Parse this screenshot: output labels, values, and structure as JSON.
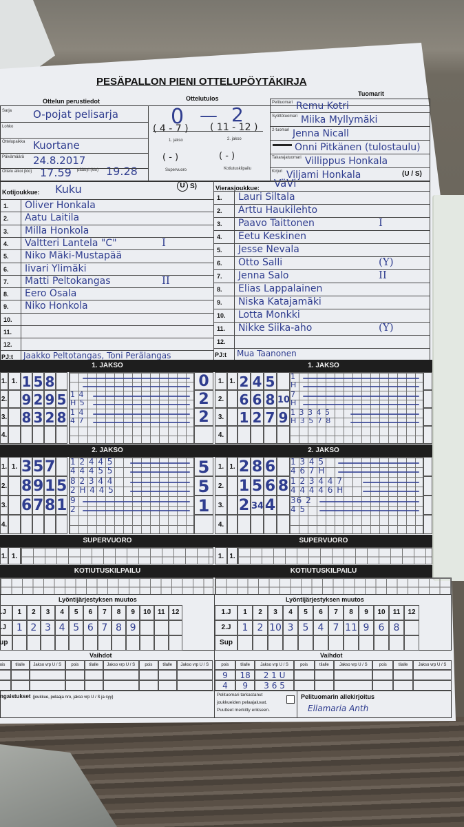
{
  "title": "PESÄPALLON PIENI OTTELUPÖYTÄKIRJA",
  "basic": {
    "heading": "Ottelun perustiedot",
    "fields": [
      {
        "label": "Sarja",
        "value": "O-pojat pelisarja"
      },
      {
        "label": "Lohko",
        "value": ""
      },
      {
        "label": "Ottelupaikka",
        "value": "Kuortane"
      },
      {
        "label": "Päivämäärä",
        "value": "24.8.2017"
      }
    ],
    "start_label": "Ottelu alkoi (klo)",
    "start": "17.59",
    "end_label": "päättyi (klo)",
    "end": "19.28"
  },
  "result": {
    "heading": "Ottelutulos",
    "home": "0",
    "dash": "—",
    "away": "2",
    "period1": "( 4 - 7 )",
    "period2": "( 11 - 12 )",
    "period1_label": "1. jakso",
    "period2_label": "2. jakso",
    "super": "(  -  )",
    "home_run": "(  -  )",
    "super_label": "Supervuoro",
    "home_run_label": "Kotiutuskilpailu"
  },
  "referees": {
    "heading": "Tuomarit",
    "rows": [
      {
        "label": "Pelituomari",
        "value": "Remu Kotri"
      },
      {
        "label": "Syöttötuomari",
        "value": "Miika Myllymäki"
      },
      {
        "label": "2-tuomari",
        "value": "Jenna Nicall"
      },
      {
        "label": "",
        "value": "Onni Pitkänen (tulostaulu)"
      },
      {
        "label": "Takarajatuomari",
        "value": "Villippus Honkala"
      },
      {
        "label": "Kirjuri",
        "value": "Viljami Honkala"
      }
    ],
    "us": "(U / S)"
  },
  "home": {
    "label": "Kotijoukkue:",
    "name": "Kuku",
    "us": "U",
    "us_rest": "S)",
    "pj_label": "PJ:t",
    "pj": "Jaakko Peltotangas, Toni Perälangas",
    "players": [
      {
        "no": "1.",
        "name": "Oliver Honkala",
        "mark": ""
      },
      {
        "no": "2.",
        "name": "Aatu Laitila",
        "mark": ""
      },
      {
        "no": "3.",
        "name": "Milla Honkola",
        "mark": ""
      },
      {
        "no": "4.",
        "name": "Valtteri Lantela \"C\"",
        "mark": "I"
      },
      {
        "no": "5.",
        "name": "Niko Mäki-Mustapää",
        "mark": ""
      },
      {
        "no": "6.",
        "name": "Iivari Ylimäki",
        "mark": ""
      },
      {
        "no": "7.",
        "name": "Matti Peltokangas",
        "mark": "II"
      },
      {
        "no": "8.",
        "name": "Eero Osala",
        "mark": ""
      },
      {
        "no": "9.",
        "name": "Niko Honkola",
        "mark": ""
      },
      {
        "no": "10.",
        "name": "",
        "mark": ""
      },
      {
        "no": "11.",
        "name": "",
        "mark": ""
      },
      {
        "no": "12.",
        "name": "",
        "mark": ""
      }
    ]
  },
  "away": {
    "label": "Vierasjoukkue:",
    "name": "VäVi",
    "us": "(U / S)",
    "pj_label": "PJ:t",
    "pj": "Mua Taanonen",
    "players": [
      {
        "no": "1.",
        "name": "Lauri Siltala",
        "mark": ""
      },
      {
        "no": "2.",
        "name": "Arttu Haukilehto",
        "mark": ""
      },
      {
        "no": "3.",
        "name": "Paavo Taittonen",
        "mark": "I"
      },
      {
        "no": "4.",
        "name": "Eetu Keskinen",
        "mark": ""
      },
      {
        "no": "5.",
        "name": "Jesse Nevala",
        "mark": ""
      },
      {
        "no": "6.",
        "name": "Otto Salli",
        "mark": "(Y)"
      },
      {
        "no": "7.",
        "name": "Jenna Salo",
        "mark": "II"
      },
      {
        "no": "8.",
        "name": "Elias Lappalainen",
        "mark": ""
      },
      {
        "no": "9.",
        "name": "Niska Katajamäki",
        "mark": ""
      },
      {
        "no": "10.",
        "name": "Lotta Monkki",
        "mark": ""
      },
      {
        "no": "11.",
        "name": "Nikke Siika-aho",
        "mark": "(Y)"
      },
      {
        "no": "12.",
        "name": "",
        "mark": ""
      }
    ]
  },
  "sections": {
    "p1": "1. JAKSO",
    "p2": "2. JAKSO",
    "super": "SUPERVUORO",
    "home_run": "KOTIUTUSKILPAILU",
    "lineup": "Lyöntijärjestyksen muutos",
    "subs": "Vaihdot"
  },
  "innings": {
    "home_p1": [
      {
        "no": "1.",
        "sub": "1.",
        "hitters": [
          "1",
          "5",
          "8",
          ""
        ],
        "notes": [
          "",
          ""
        ],
        "score": "0"
      },
      {
        "no": "2.",
        "sub": "",
        "hitters": [
          "9",
          "2",
          "9",
          "5"
        ],
        "notes": [
          "1 4",
          "H 5"
        ],
        "score": "2"
      },
      {
        "no": "3.",
        "sub": "",
        "hitters": [
          "8",
          "3",
          "2",
          "8"
        ],
        "notes": [
          "1 4",
          "4 7"
        ],
        "score": "2"
      },
      {
        "no": "4.",
        "sub": "",
        "hitters": [
          "",
          "",
          "",
          ""
        ],
        "notes": [
          "",
          ""
        ],
        "score": ""
      }
    ],
    "away_p1": [
      {
        "no": "1.",
        "sub": "1.",
        "hitters": [
          "2",
          "4",
          "5",
          ""
        ],
        "notes": [
          "1",
          "H"
        ],
        "score": ""
      },
      {
        "no": "2.",
        "sub": "",
        "hitters": [
          "6",
          "6",
          "8",
          "10"
        ],
        "notes": [
          "7",
          "H"
        ],
        "score": ""
      },
      {
        "no": "3.",
        "sub": "",
        "hitters": [
          "1",
          "2",
          "7",
          "9"
        ],
        "notes": [
          "1 3 3 4 5",
          "H 3 5 7 8"
        ],
        "score": ""
      },
      {
        "no": "4.",
        "sub": "",
        "hitters": [
          "",
          "",
          "",
          ""
        ],
        "notes": [
          "",
          ""
        ],
        "score": ""
      }
    ],
    "home_p2": [
      {
        "no": "1.",
        "sub": "1.",
        "hitters": [
          "3",
          "5",
          "7",
          ""
        ],
        "notes": [
          "1 2 4 4 5",
          "4 4 4 5 5"
        ],
        "score": "5"
      },
      {
        "no": "2.",
        "sub": "",
        "hitters": [
          "8",
          "9",
          "1",
          "5"
        ],
        "notes": [
          "8 2 3 4 4",
          "2 H 4 4 5"
        ],
        "score": "5"
      },
      {
        "no": "3.",
        "sub": "",
        "hitters": [
          "6",
          "7",
          "8",
          "1"
        ],
        "notes": [
          "9",
          "2"
        ],
        "score": "1"
      },
      {
        "no": "4.",
        "sub": "",
        "hitters": [
          "",
          "",
          "",
          ""
        ],
        "notes": [
          "",
          ""
        ],
        "score": ""
      }
    ],
    "away_p2": [
      {
        "no": "1.",
        "sub": "1.",
        "hitters": [
          "2",
          "8",
          "6",
          ""
        ],
        "notes": [
          "1 3 4 5",
          "4 6 7 H"
        ],
        "score": ""
      },
      {
        "no": "2.",
        "sub": "",
        "hitters": [
          "1",
          "5",
          "6",
          "8"
        ],
        "notes": [
          "1 2 3 4 4 7",
          "4 4 4 4 6 H"
        ],
        "score": ""
      },
      {
        "no": "3.",
        "sub": "",
        "hitters": [
          "2",
          "34",
          "4",
          ""
        ],
        "notes": [
          "36 2",
          "4 5"
        ],
        "score": ""
      },
      {
        "no": "4.",
        "sub": "",
        "hitters": [
          "",
          "",
          "",
          ""
        ],
        "notes": [
          "",
          ""
        ],
        "score": ""
      }
    ],
    "super_label": "1.",
    "super_sub": "1."
  },
  "lineup": {
    "numbers": [
      "1",
      "2",
      "3",
      "4",
      "5",
      "6",
      "7",
      "8",
      "9",
      "10",
      "11",
      "12"
    ],
    "row_labels": [
      "1.J",
      "2.J",
      "Sup"
    ],
    "home_2j": [
      "1",
      "2",
      "3",
      "4",
      "5",
      "6",
      "7",
      "8",
      "9",
      "",
      "",
      ""
    ],
    "away_2j": [
      "1",
      "2",
      "10",
      "3",
      "5",
      "4",
      "7",
      "11",
      "9",
      "6",
      "8",
      ""
    ]
  },
  "subs": {
    "cols": [
      "pois",
      "tilalle",
      "Jakso vrp U / S"
    ],
    "away_rows": [
      [
        "9",
        "18",
        "2 1 U"
      ],
      [
        "4",
        "9",
        "3 6 5"
      ]
    ]
  },
  "footer": {
    "remarks_bold": "ngaistukset",
    "remarks_note": "(joukkue, pelaaja nro, jakso vrp U / S ja syy)",
    "check_lines": [
      "Pelituomari tarkastanut",
      "joukkueiden pelaajaluvat.",
      "Puutteet merkitty erikseen."
    ],
    "signature_label": "Pelituomarin allekirjoitus",
    "signature": "Ellamaria Anth"
  },
  "colors": {
    "ink": "#2f3d8f",
    "bars": "#1e1e1e",
    "paper": "#eceef2"
  }
}
